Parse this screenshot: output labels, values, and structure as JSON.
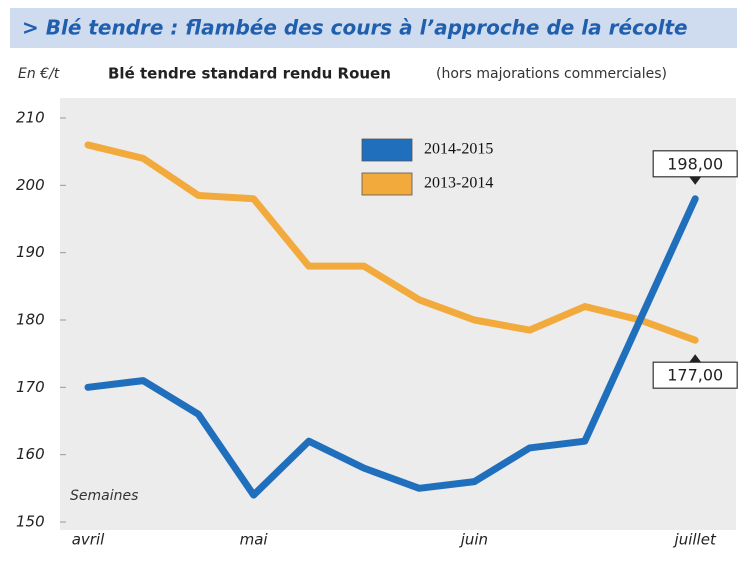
{
  "chart_data": {
    "type": "line",
    "title": "> Blé tendre : flambée des cours à l’approche de la récolte",
    "subtitle": "Blé tendre standard rendu Rouen",
    "subtitle_note": "(hors majorations commerciales)",
    "y_label": "En €/t",
    "x_label": "Semaines",
    "categories": [
      "avril",
      null,
      null,
      "mai",
      null,
      null,
      null,
      "juin",
      null,
      null,
      null,
      "juillet"
    ],
    "series": [
      {
        "name": "2014-2015",
        "color": "#1f6fbd",
        "values": [
          170,
          171,
          166,
          154,
          162,
          158,
          155,
          156,
          161,
          162,
          180,
          198
        ],
        "value_labels": [
          null,
          null,
          null,
          null,
          null,
          null,
          null,
          null,
          null,
          null,
          null,
          "198,00"
        ]
      },
      {
        "name": "2013-2014",
        "color": "#f3aa3c",
        "values": [
          206,
          204,
          198.5,
          198,
          188,
          188,
          183,
          180,
          178.5,
          182,
          180,
          177
        ],
        "value_labels": [
          null,
          null,
          null,
          null,
          null,
          null,
          null,
          null,
          null,
          null,
          null,
          "177,00"
        ]
      }
    ],
    "ylim": [
      150,
      210
    ],
    "yticks": [
      150,
      160,
      170,
      180,
      190,
      200,
      210
    ],
    "legend": "top"
  }
}
